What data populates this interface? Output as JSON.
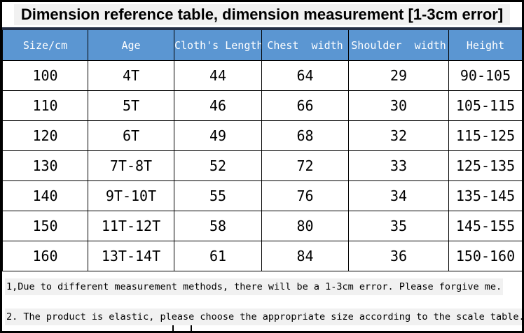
{
  "title": "Dimension reference table, dimension measurement [1-3cm error]",
  "chart_data": {
    "type": "table",
    "columns": [
      "Size/cm",
      "Age",
      "Cloth's Length",
      "Chest  width",
      "Shoulder  width",
      "Height"
    ],
    "rows": [
      [
        "100",
        "4T",
        "44",
        "64",
        "29",
        "90-105"
      ],
      [
        "110",
        "5T",
        "46",
        "66",
        "30",
        "105-115"
      ],
      [
        "120",
        "6T",
        "49",
        "68",
        "32",
        "115-125"
      ],
      [
        "130",
        "7T-8T",
        "52",
        "72",
        "33",
        "125-135"
      ],
      [
        "140",
        "9T-10T",
        "55",
        "76",
        "34",
        "135-145"
      ],
      [
        "150",
        "11T-12T",
        "58",
        "80",
        "35",
        "145-155"
      ],
      [
        "160",
        "13T-14T",
        "61",
        "84",
        "36",
        "150-160"
      ]
    ],
    "units": "cm"
  },
  "notes": [
    "1,Due to different measurement methods, there will be a 1-3cm error. Please forgive me.",
    "2. The product is elastic, please choose the appropriate size according to the scale table."
  ],
  "colors": {
    "header_bg": "#5b96d2",
    "header_text": "#ffffff",
    "top_rule": "#232e45",
    "note_highlight": "#f1f1f1",
    "border": "#000000"
  }
}
